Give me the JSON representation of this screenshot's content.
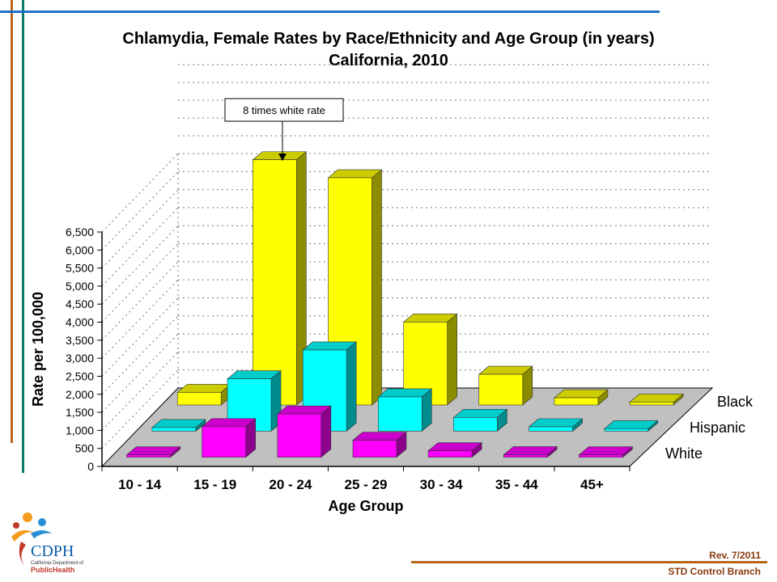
{
  "title_line1": "Chlamydia, Female Rates by Race/Ethnicity and Age Group (in years)",
  "title_line2": "California, 2010",
  "annotation": "8 times white rate",
  "footer": {
    "revision": "Rev. 7/2011",
    "branch": "STD Control Branch"
  },
  "logo": {
    "name": "CDPH",
    "sub": "California Department of",
    "health": "PublicHealth"
  },
  "colors": {
    "black_series": "#ffff00",
    "hispanic_series": "#00ffff",
    "white_series": "#ff00ff",
    "floor": "#c0c0c0",
    "accent_orange": "#b8651b",
    "accent_teal": "#0a7a6a",
    "accent_blue": "#1f6fc6"
  },
  "chart_data": {
    "type": "bar",
    "subtype": "3d-grouped",
    "title": "Chlamydia, Female Rates by Race/Ethnicity and Age Group (in years) California, 2010",
    "xlabel": "Age Group",
    "ylabel": "Rate per 100,000",
    "ylim": [
      0,
      6500
    ],
    "yticks": [
      "0",
      "500",
      "1,000",
      "1,500",
      "2,000",
      "2,500",
      "3,000",
      "3,500",
      "4,000",
      "4,500",
      "5,000",
      "5,500",
      "6,000",
      "6,500"
    ],
    "categories": [
      "10 - 14",
      "15 - 19",
      "20 - 24",
      "25 - 29",
      "30 - 34",
      "35 - 44",
      "45+"
    ],
    "series": [
      {
        "name": "Black",
        "values": [
          350,
          6800,
          6300,
          2300,
          850,
          200,
          80
        ]
      },
      {
        "name": "Hispanic",
        "values": [
          100,
          1450,
          2250,
          950,
          380,
          120,
          40
        ]
      },
      {
        "name": "White",
        "values": [
          60,
          850,
          1200,
          470,
          180,
          70,
          20
        ]
      }
    ],
    "grid": true
  }
}
